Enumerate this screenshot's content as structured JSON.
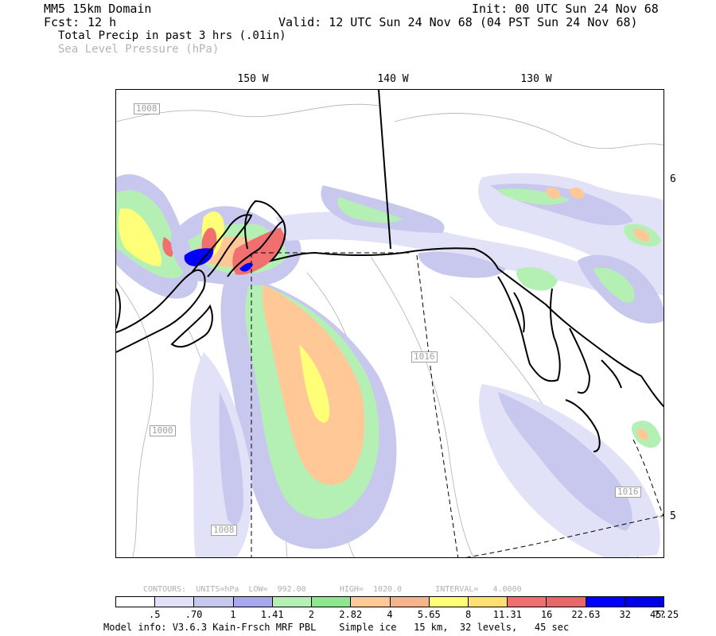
{
  "header": {
    "domain": "MM5 15km Domain",
    "init": "Init: 00 UTC Sun 24 Nov 68",
    "fcst_label": "Fcst:",
    "fcst_value": "12 h",
    "valid": "Valid: 12 UTC Sun 24 Nov 68 (04 PST Sun 24 Nov 68)",
    "field1": "Total Precip in past 3 hrs (.01in)",
    "field2": "Sea Level Pressure (hPa)"
  },
  "longitude_labels": [
    "150 W",
    "140 W",
    "130 W"
  ],
  "latitude_labels": [
    "6",
    "5"
  ],
  "contour_labels": [
    "1008",
    "1016",
    "1000",
    "1008",
    "1016"
  ],
  "contour_info": "CONTOURS:  UNITS=hPa  LOW=  992.00       HIGH=  1020.0       INTERVAL=   4.0000",
  "colorbar": {
    "colors": [
      "#ffffff",
      "#e1e1f7",
      "#c8c8ef",
      "#a8a8ec",
      "#b4f0b4",
      "#8ee68e",
      "#ffc896",
      "#f5b48c",
      "#ffff78",
      "#ffe070",
      "#f07070",
      "#e86868",
      "#0000ff",
      "#0000e8"
    ],
    "labels": [
      ".5",
      ".70",
      "1",
      "1.41",
      "2",
      "2.82",
      "4",
      "5.65",
      "8",
      "11.31",
      "16",
      "22.63",
      "32",
      "45.25",
      "??"
    ]
  },
  "model_info": "Model info: V3.6.3 Kain-Frsch MRF PBL    Simple ice   15 km,  32 levels,   45 sec"
}
